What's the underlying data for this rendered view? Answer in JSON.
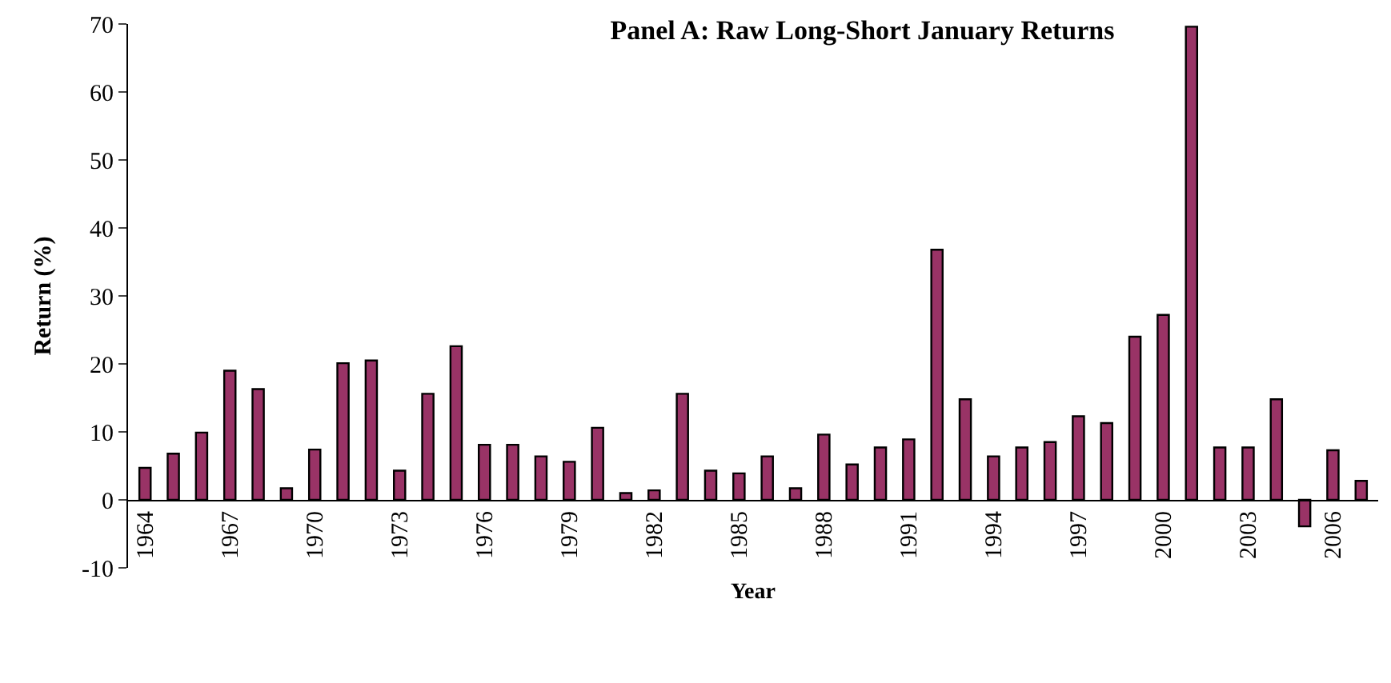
{
  "chart_data": {
    "type": "bar",
    "title": "Panel A: Raw Long-Short January Returns",
    "xlabel": "Year",
    "ylabel": "Return (%)",
    "categories": [
      "1964",
      null,
      null,
      "1967",
      null,
      null,
      "1970",
      null,
      null,
      "1973",
      null,
      null,
      "1976",
      null,
      null,
      "1979",
      null,
      null,
      "1982",
      null,
      null,
      "1985",
      null,
      null,
      "1988",
      null,
      null,
      "1991",
      null,
      null,
      "1994",
      null,
      null,
      "1997",
      null,
      null,
      "2000",
      null,
      null,
      "2003",
      null,
      null,
      "2006",
      null
    ],
    "values": [
      4.7,
      6.8,
      9.9,
      19.0,
      16.3,
      1.7,
      7.4,
      20.1,
      20.5,
      4.3,
      15.6,
      22.6,
      8.1,
      8.1,
      6.4,
      5.6,
      10.6,
      1.0,
      1.4,
      15.6,
      4.3,
      3.9,
      6.4,
      1.7,
      9.6,
      5.2,
      7.7,
      8.9,
      36.8,
      14.8,
      6.4,
      7.7,
      8.5,
      12.3,
      11.3,
      24.0,
      27.2,
      69.6,
      7.7,
      7.7,
      14.8,
      -3.9,
      7.3,
      2.8
    ],
    "color": "#993366",
    "ylim": [
      -10,
      70
    ],
    "yticks": [
      -10,
      0,
      10,
      20,
      30,
      40,
      50,
      60,
      70
    ]
  }
}
